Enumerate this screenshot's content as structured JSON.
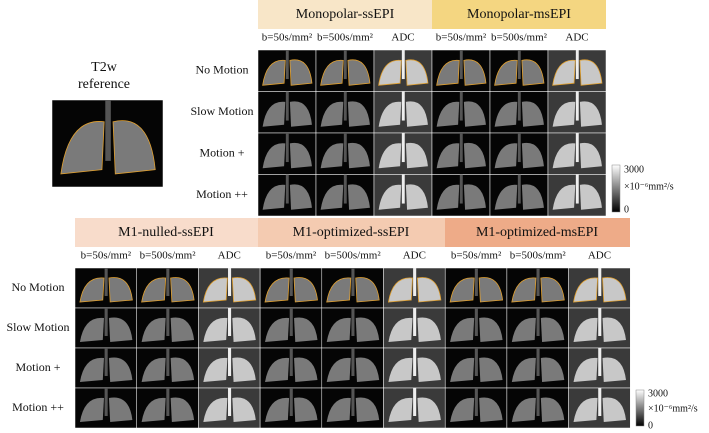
{
  "reference": {
    "title": [
      "T2w",
      "reference"
    ]
  },
  "top": {
    "headers": [
      "Monopolar-ssEPI",
      "Monopolar-msEPI"
    ],
    "columns": [
      "b=50s/mm²",
      "b=500s/mm²",
      "ADC",
      "b=50s/mm²",
      "b=500s/mm²",
      "ADC"
    ],
    "rows": [
      "No Motion",
      "Slow Motion",
      "Motion +",
      "Motion ++"
    ],
    "colorbar": {
      "max": "3000",
      "unit": "×10⁻⁶mm²/s",
      "min": "0"
    }
  },
  "bottom": {
    "headers": [
      "M1-nulled-ssEPI",
      "M1-optimized-ssEPI",
      "M1-optimized-msEPI"
    ],
    "columns": [
      "b=50s/mm²",
      "b=500s/mm²",
      "ADC",
      "b=50s/mm²",
      "b=500s/mm²",
      "ADC",
      "b=50s/mm²",
      "b=500s/mm²",
      "ADC"
    ],
    "rows": [
      "No Motion",
      "Slow Motion",
      "Motion +",
      "Motion ++"
    ],
    "colorbar": {
      "max": "3000",
      "unit": "×10⁻⁶mm²/s",
      "min": "0"
    }
  }
}
